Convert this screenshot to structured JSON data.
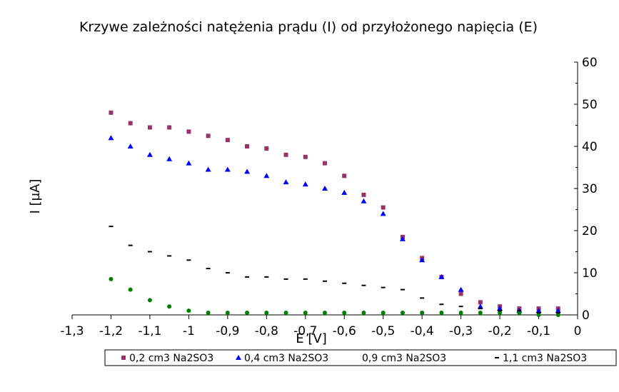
{
  "chart_data": {
    "type": "scatter",
    "title": "Krzywe zależności natężenia prądu (I) od przyłożonego napięcia (E)",
    "xlabel": "E [V]",
    "ylabel": "I [µA]",
    "xlim": [
      -1.3,
      0
    ],
    "ylim": [
      0,
      60
    ],
    "x_ticks": [
      -1.3,
      -1.2,
      -1.1,
      -1,
      -0.9,
      -0.8,
      -0.7,
      -0.6,
      -0.5,
      -0.4,
      -0.3,
      -0.2,
      -0.1,
      0
    ],
    "x_tick_labels": [
      "-1,3",
      "-1,2",
      "-1,1",
      "-1",
      "-0,9",
      "-0,8",
      "-0,7",
      "-0,6",
      "-0,5",
      "-0,4",
      "-0,3",
      "-0,2",
      "-0,1",
      "0"
    ],
    "y_ticks": [
      0,
      10,
      20,
      30,
      40,
      50,
      60
    ],
    "y_tick_labels": [
      "0",
      "10",
      "20",
      "30",
      "40",
      "50",
      "60"
    ],
    "y_axis_side": "right",
    "grid": false,
    "legend_position": "bottom",
    "series": [
      {
        "name": "0,2 cm3 Na2SO3",
        "marker": "square",
        "color": "#993366",
        "x": [
          -1.2,
          -1.15,
          -1.1,
          -1.05,
          -1.0,
          -0.95,
          -0.9,
          -0.85,
          -0.8,
          -0.75,
          -0.7,
          -0.65,
          -0.6,
          -0.55,
          -0.5,
          -0.45,
          -0.4,
          -0.35,
          -0.3,
          -0.25,
          -0.2,
          -0.15,
          -0.1,
          -0.05
        ],
        "y": [
          48,
          45.5,
          44.5,
          44.5,
          43.5,
          42.5,
          41.5,
          40,
          39.5,
          38,
          37.5,
          36,
          33,
          28.5,
          25.5,
          18.5,
          13.5,
          9,
          5,
          3,
          2,
          1.5,
          1.5,
          1.5
        ]
      },
      {
        "name": "0,4 cm3 Na2SO3",
        "marker": "triangle",
        "color": "#0000ff",
        "x": [
          -1.2,
          -1.15,
          -1.1,
          -1.05,
          -1.0,
          -0.95,
          -0.9,
          -0.85,
          -0.8,
          -0.75,
          -0.7,
          -0.65,
          -0.6,
          -0.55,
          -0.5,
          -0.45,
          -0.4,
          -0.35,
          -0.3,
          -0.25,
          -0.2,
          -0.15,
          -0.1,
          -0.05
        ],
        "y": [
          42,
          40,
          38,
          37,
          36,
          34.5,
          34.5,
          34,
          33,
          31.5,
          31,
          30,
          29,
          27,
          24,
          18,
          13,
          9,
          6,
          2,
          1.5,
          1,
          1,
          1
        ]
      },
      {
        "name": "0,9 cm3 Na2SO3",
        "marker": "circle",
        "color": "#008000",
        "x": [
          -1.2,
          -1.15,
          -1.1,
          -1.05,
          -1.0,
          -0.95,
          -0.9,
          -0.85,
          -0.8,
          -0.75,
          -0.7,
          -0.65,
          -0.6,
          -0.55,
          -0.5,
          -0.45,
          -0.4,
          -0.35,
          -0.3,
          -0.25,
          -0.2,
          -0.15,
          -0.1,
          -0.05
        ],
        "y": [
          8.5,
          6,
          3.5,
          2,
          1,
          0.5,
          0.5,
          0.5,
          0.5,
          0.5,
          0.5,
          0.5,
          0.5,
          0.5,
          0.5,
          0.5,
          0.5,
          0.5,
          0.5,
          0.5,
          0.5,
          0.5,
          0,
          0
        ]
      },
      {
        "name": "1,1 cm3 Na2SO3",
        "marker": "dash",
        "color": "#000000",
        "x": [
          -1.2,
          -1.15,
          -1.1,
          -1.05,
          -1.0,
          -0.95,
          -0.9,
          -0.85,
          -0.8,
          -0.75,
          -0.7,
          -0.65,
          -0.6,
          -0.55,
          -0.5,
          -0.45,
          -0.4,
          -0.35,
          -0.3,
          -0.25,
          -0.2,
          -0.15,
          -0.1,
          -0.05
        ],
        "y": [
          21,
          16.5,
          15,
          14,
          13,
          11,
          10,
          9,
          9,
          8.5,
          8.5,
          8,
          7.5,
          7,
          6.5,
          6,
          4,
          2.5,
          2,
          1.5,
          1,
          1,
          0.5,
          0.5
        ]
      }
    ]
  }
}
